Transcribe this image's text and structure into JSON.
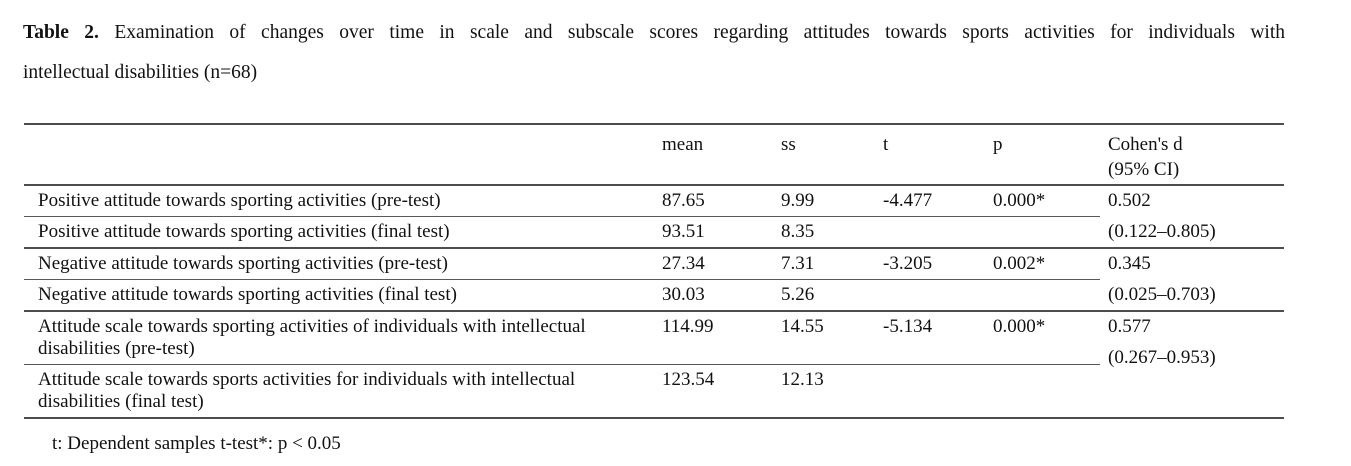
{
  "title": {
    "label": "Table 2.",
    "line1_rest": " Examination of changes over time in scale and subscale scores regarding attitudes towards sports activities for individuals with",
    "line2": "intellectual disabilities (n=68)"
  },
  "table": {
    "headers": {
      "label": "",
      "mean": "mean",
      "ss": "ss",
      "t": "t",
      "p": "p",
      "cohen_line1": "Cohen's d",
      "cohen_line2": "(95% CI)"
    },
    "rows": [
      {
        "label": "Positive attitude towards sporting activities (pre-test)",
        "mean": "87.65",
        "ss": "9.99",
        "t": "-4.477",
        "p": "0.000*"
      },
      {
        "label": "Positive attitude towards sporting activities (final test)",
        "mean": "93.51",
        "ss": "8.35",
        "t": "",
        "p": ""
      },
      {
        "label": "Negative attitude towards sporting activities (pre-test)",
        "mean": "27.34",
        "ss": "7.31",
        "t": "-3.205",
        "p": "0.002*"
      },
      {
        "label": "Negative attitude towards sporting activities (final test)",
        "mean": "30.03",
        "ss": "5.26",
        "t": "",
        "p": ""
      },
      {
        "label": "Attitude scale towards sporting activities of individuals with intellectual disabilities (pre-test)",
        "mean": "114.99",
        "ss": "14.55",
        "t": "-5.134",
        "p": "0.000*"
      },
      {
        "label": "Attitude scale towards sports activities for individuals with intellectual disabilities (final test)",
        "mean": "123.54",
        "ss": "12.13",
        "t": "",
        "p": ""
      }
    ],
    "cohen_pairs": [
      {
        "d": "0.502",
        "ci": "(0.122–0.805)"
      },
      {
        "d": "0.345",
        "ci": "(0.025–0.703)"
      },
      {
        "d": "0.577",
        "ci": "(0.267–0.953)"
      }
    ]
  },
  "footnote": "t: Dependent samples t-test*: p < 0.05",
  "colors": {
    "background": "#ffffff",
    "text": "#111111",
    "rule": "#4d4d4d"
  }
}
